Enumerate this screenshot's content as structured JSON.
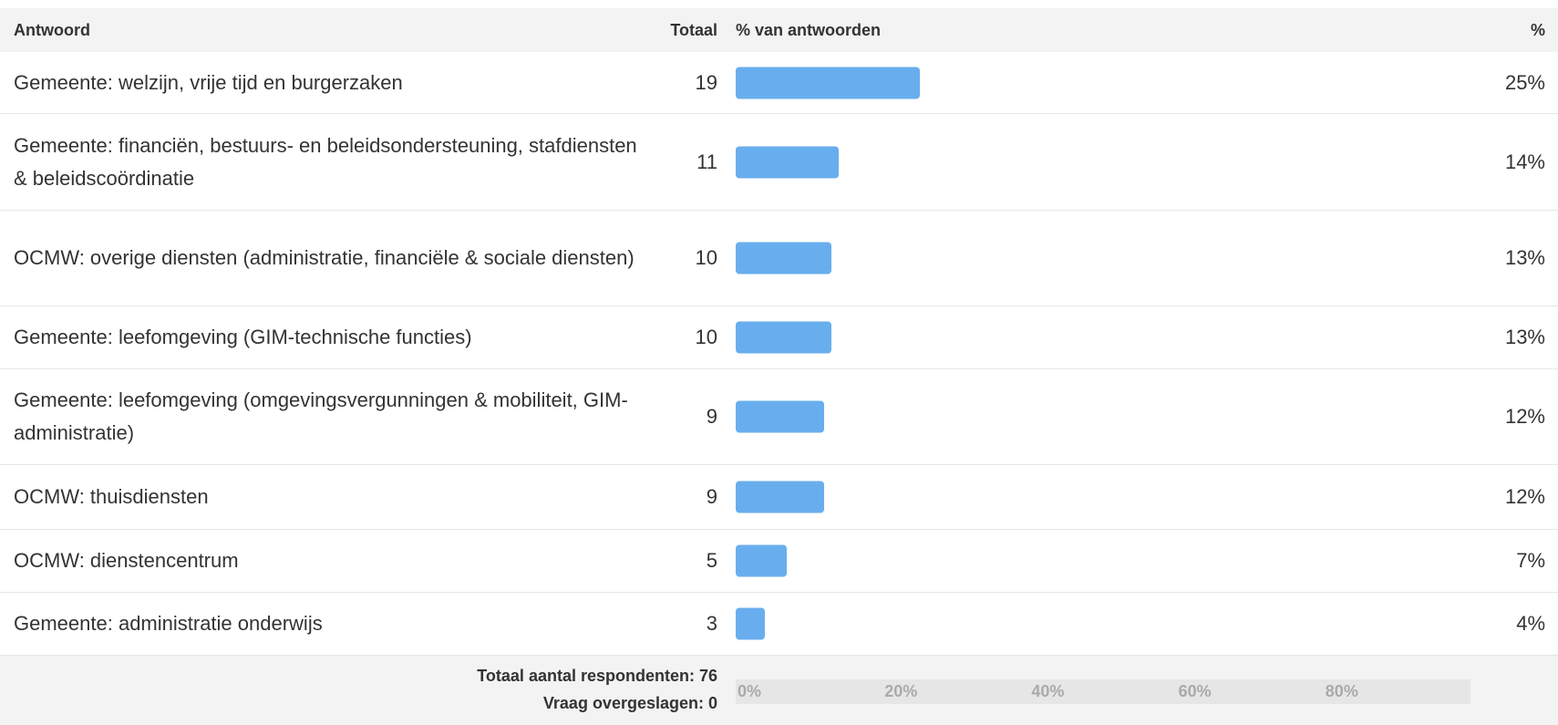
{
  "chart_data": {
    "type": "bar",
    "orientation": "horizontal",
    "columns": [
      "Antwoord",
      "Totaal",
      "% van antwoorden",
      "%"
    ],
    "categories": [
      "Gemeente: welzijn, vrije tijd en burgerzaken",
      "Gemeente: financiën, bestuurs- en beleidsondersteuning, stafdiensten & beleidscoördinatie",
      "OCMW: overige diensten (administratie, financiële & sociale diensten)",
      "Gemeente: leefomgeving (GIM-technische functies)",
      "Gemeente: leefomgeving (omgevingsvergunningen & mobiliteit, GIM-administratie)",
      "OCMW: thuisdiensten",
      "OCMW: dienstencentrum",
      "Gemeente: administratie onderwijs"
    ],
    "counts": [
      19,
      11,
      10,
      10,
      9,
      9,
      5,
      3
    ],
    "values": [
      25,
      14,
      13,
      13,
      12,
      12,
      7,
      4
    ],
    "value_labels": [
      "25%",
      "14%",
      "13%",
      "13%",
      "12%",
      "12%",
      "7%",
      "4%"
    ],
    "color": "#68aeee",
    "xlim": [
      0,
      100
    ],
    "xticks": [
      {
        "value": 0,
        "label": "0%"
      },
      {
        "value": 20,
        "label": "20%"
      },
      {
        "value": 40,
        "label": "40%"
      },
      {
        "value": 60,
        "label": "60%"
      },
      {
        "value": 80,
        "label": "80%"
      }
    ],
    "footer": [
      "Totaal aantal respondenten: 76",
      "Vraag overgeslagen: 0"
    ]
  }
}
